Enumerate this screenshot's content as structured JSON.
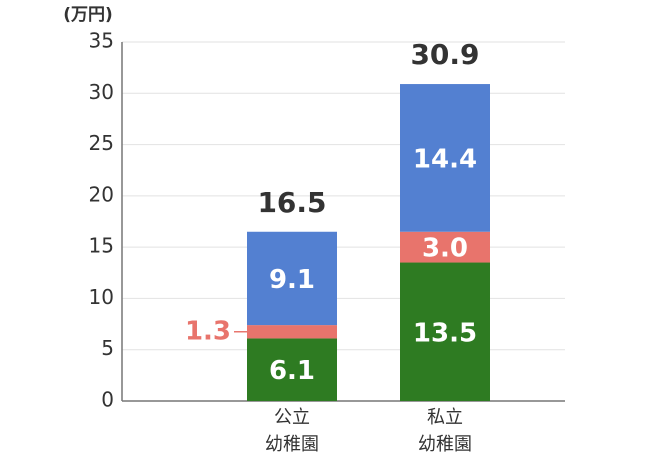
{
  "chart_data": {
    "type": "stacked-bar",
    "y_unit": "(万円)",
    "categories": [
      [
        "公立",
        "幼稚園"
      ],
      [
        "私立",
        "幼稚園"
      ]
    ],
    "series": [
      {
        "color": "#2e7b22",
        "values": [
          6.1,
          13.5
        ]
      },
      {
        "color": "#e8746c",
        "values": [
          1.3,
          3.0
        ],
        "value_labels": [
          "1.3",
          "3.0"
        ]
      },
      {
        "color": "#5380d1",
        "values": [
          9.1,
          14.4
        ]
      }
    ],
    "totals": [
      16.5,
      30.9
    ],
    "ylim": [
      0,
      35
    ],
    "yticks": [
      0,
      5,
      10,
      15,
      20,
      25,
      30,
      35
    ],
    "grid": true
  }
}
